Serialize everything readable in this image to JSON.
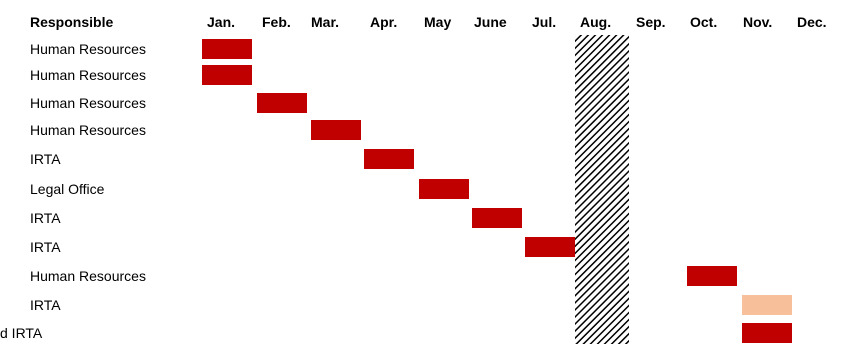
{
  "header": {
    "responsible_label": "Responsible"
  },
  "colors": {
    "bar_primary": "#c00000",
    "bar_secondary": "#f8c09a",
    "hatch_stroke": "#000000"
  },
  "chart_data": {
    "type": "gantt",
    "months": [
      "Jan.",
      "Feb.",
      "Mar.",
      "Apr.",
      "May",
      "June",
      "Jul.",
      "Aug.",
      "Sep.",
      "Oct.",
      "Nov.",
      "Dec."
    ],
    "shaded_month": "Aug.",
    "shaded_pattern": "diagonal-hatch",
    "rows": [
      {
        "responsible": "Human Resources",
        "month": "Jan.",
        "style": "primary"
      },
      {
        "responsible": "Human Resources",
        "month": "Jan.",
        "style": "primary"
      },
      {
        "responsible": "Human Resources",
        "month": "Feb.",
        "style": "primary"
      },
      {
        "responsible": "Human Resources",
        "month": "Mar.",
        "style": "primary"
      },
      {
        "responsible": "IRTA",
        "month": "Apr.",
        "style": "primary"
      },
      {
        "responsible": "Legal Office",
        "month": "May",
        "style": "primary"
      },
      {
        "responsible": "IRTA",
        "month": "June",
        "style": "primary"
      },
      {
        "responsible": "IRTA",
        "month": "Jul.",
        "style": "primary"
      },
      {
        "responsible": "Human Resources",
        "month": "Oct.",
        "style": "primary"
      },
      {
        "responsible": "IRTA",
        "month": "Nov.",
        "style": "secondary"
      },
      {
        "responsible": "d IRTA",
        "month": "Nov.",
        "style": "primary"
      }
    ]
  }
}
